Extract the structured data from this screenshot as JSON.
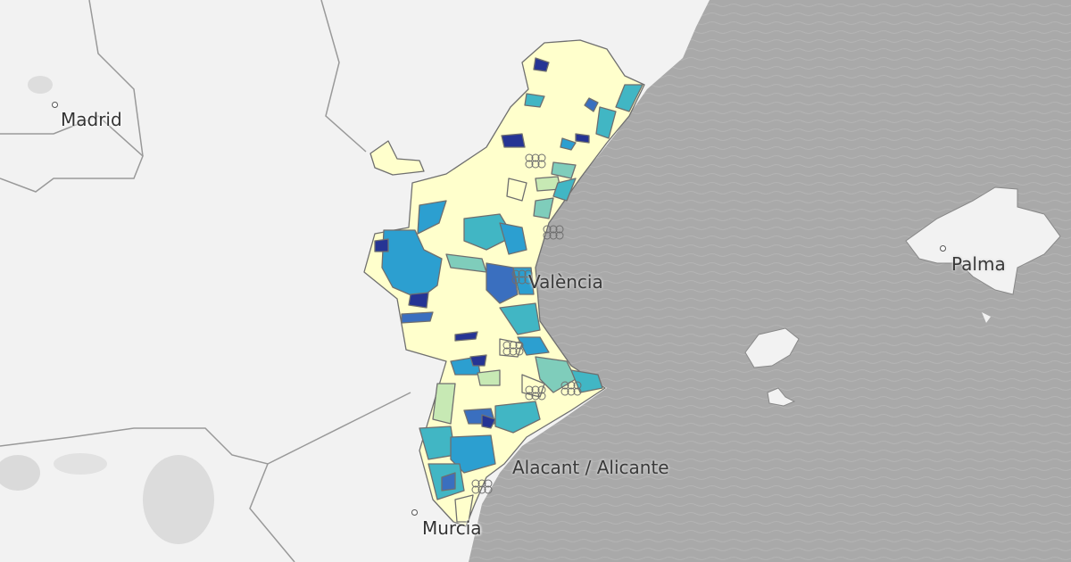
{
  "map": {
    "cities": [
      {
        "name": "Madrid"
      },
      {
        "name": "València"
      },
      {
        "name": "Palma"
      },
      {
        "name": "Alacant / Alicante"
      },
      {
        "name": "Murcia"
      }
    ],
    "choropleth_colors": [
      "#ffffcc",
      "#c7e9b4",
      "#7fcdbb",
      "#41b6c4",
      "#2c9fd0",
      "#3a6fbf",
      "#253494"
    ],
    "land_color": "#f2f2f2",
    "sea_color": "#a9a9a9",
    "border_color": "#6f6f6f"
  }
}
